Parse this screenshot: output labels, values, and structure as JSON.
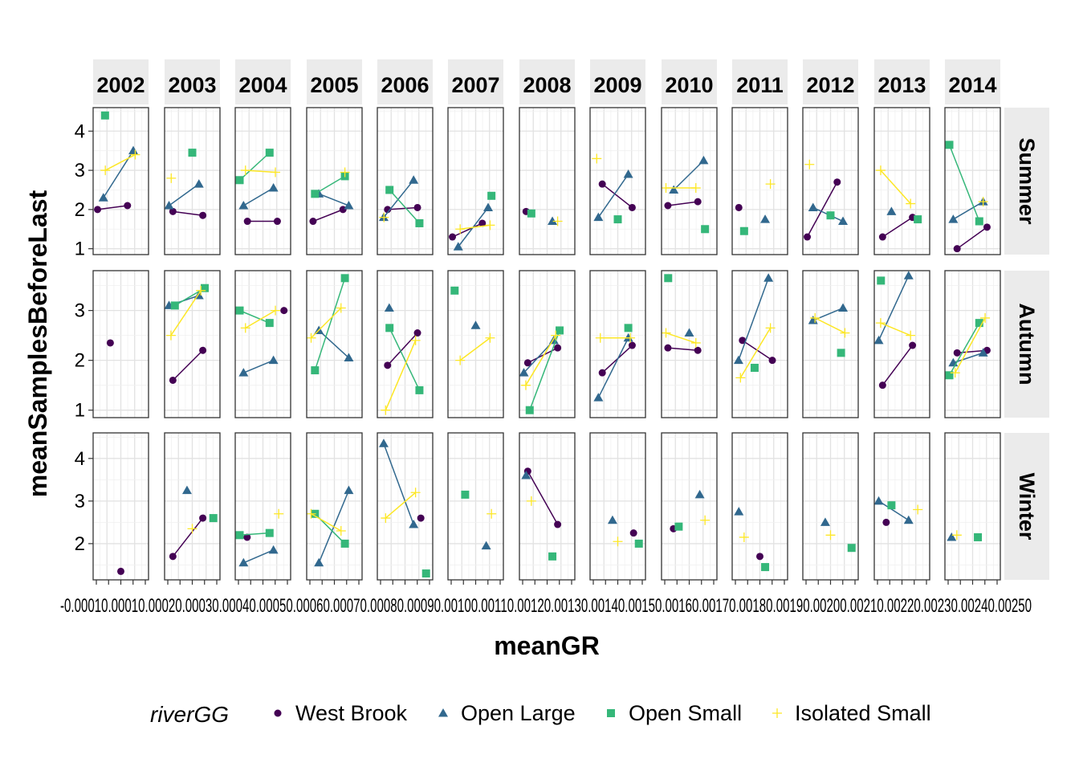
{
  "chart_data": {
    "type": "line",
    "xlabel": "meanGR",
    "ylabel": "meanSamplesBeforeLast",
    "x_tick_labels_text": "-0.00010.00010.00020.00030.00040.00050.00060.00070.00080.00090.00100.00110.00120.00130.00140.00150.00160.00170.00180.00190.00200.00210.00220.00230.00240.00250",
    "facets": {
      "columns": [
        "2002",
        "2003",
        "2004",
        "2005",
        "2006",
        "2007",
        "2008",
        "2009",
        "2010",
        "2011",
        "2012",
        "2013",
        "2014"
      ],
      "rows": [
        "Summer",
        "Autumn",
        "Winter"
      ]
    },
    "y_axes": {
      "Summer": {
        "ylim": [
          0.85,
          4.6
        ],
        "ticks": [
          1,
          2,
          3,
          4
        ],
        "tick_labels": [
          "1",
          "2",
          "3",
          "4"
        ]
      },
      "Autumn": {
        "ylim": [
          0.85,
          3.8
        ],
        "ticks": [
          1,
          2,
          3
        ],
        "tick_labels": [
          "1",
          "2",
          "3"
        ]
      },
      "Winter": {
        "ylim": [
          1.15,
          4.6
        ],
        "ticks": [
          2,
          3,
          4
        ],
        "tick_labels": [
          "2",
          "3",
          "4"
        ]
      }
    },
    "legend": {
      "title": "riverGG",
      "position": "bottom",
      "entries": [
        {
          "label": "West Brook",
          "color": "#440154",
          "shape": "circle"
        },
        {
          "label": "Open Large",
          "color": "#31688E",
          "shape": "triangle"
        },
        {
          "label": "Open Small",
          "color": "#35B779",
          "shape": "square"
        },
        {
          "label": "Isolated Small",
          "color": "#FDE725",
          "shape": "plus"
        }
      ]
    },
    "series_values": {
      "Summer": {
        "2002": {
          "West Brook": [
            2.0,
            2.1
          ],
          "Open Large": [
            2.3,
            3.5
          ],
          "Open Small": [
            4.4
          ],
          "Isolated Small": [
            3.0,
            3.4
          ]
        },
        "2003": {
          "West Brook": [
            1.95,
            1.85
          ],
          "Open Large": [
            2.1,
            2.65
          ],
          "Open Small": [
            3.45
          ],
          "Isolated Small": [
            2.8
          ]
        },
        "2004": {
          "West Brook": [
            1.7,
            1.7
          ],
          "Open Large": [
            2.1,
            2.55
          ],
          "Open Small": [
            2.75,
            3.45
          ],
          "Isolated Small": [
            3.0,
            2.95
          ]
        },
        "2005": {
          "West Brook": [
            1.7,
            2.0
          ],
          "Open Large": [
            2.4,
            2.1
          ],
          "Open Small": [
            2.4,
            2.85
          ],
          "Isolated Small": [
            2.95
          ]
        },
        "2006": {
          "West Brook": [
            2.0,
            2.05
          ],
          "Open Large": [
            1.8,
            2.75
          ],
          "Open Small": [
            2.5,
            1.65
          ],
          "Isolated Small": [
            1.8
          ]
        },
        "2007": {
          "West Brook": [
            1.3,
            1.65
          ],
          "Open Large": [
            1.05,
            2.05
          ],
          "Open Small": [
            2.35
          ],
          "Isolated Small": [
            1.5,
            1.6
          ]
        },
        "2008": {
          "West Brook": [
            1.95
          ],
          "Open Large": [
            1.7
          ],
          "Open Small": [
            1.9
          ],
          "Isolated Small": [
            1.7
          ]
        },
        "2009": {
          "West Brook": [
            2.65,
            2.05
          ],
          "Open Large": [
            1.8,
            2.9
          ],
          "Open Small": [
            1.75
          ],
          "Isolated Small": [
            3.3
          ]
        },
        "2010": {
          "West Brook": [
            2.1,
            2.2
          ],
          "Open Large": [
            2.5,
            3.25
          ],
          "Open Small": [
            1.5
          ],
          "Isolated Small": [
            2.55,
            2.55
          ]
        },
        "2011": {
          "West Brook": [
            2.05
          ],
          "Open Large": [
            1.75
          ],
          "Open Small": [
            1.45
          ],
          "Isolated Small": [
            2.65
          ]
        },
        "2012": {
          "West Brook": [
            1.3,
            2.7
          ],
          "Open Large": [
            2.05,
            1.7
          ],
          "Open Small": [
            1.85
          ],
          "Isolated Small": [
            3.15
          ]
        },
        "2013": {
          "West Brook": [
            1.3,
            1.8
          ],
          "Open Large": [
            1.95
          ],
          "Open Small": [
            1.75
          ],
          "Isolated Small": [
            3.0,
            2.15
          ]
        },
        "2014": {
          "West Brook": [
            1.0,
            1.55
          ],
          "Open Large": [
            1.75,
            2.2
          ],
          "Open Small": [
            3.65,
            1.7
          ],
          "Isolated Small": [
            2.2
          ]
        }
      },
      "Autumn": {
        "2002": {
          "West Brook": [
            2.35
          ]
        },
        "2003": {
          "West Brook": [
            1.6,
            2.2
          ],
          "Open Large": [
            3.1,
            3.3
          ],
          "Open Small": [
            3.1,
            3.45
          ],
          "Isolated Small": [
            2.5,
            3.4
          ]
        },
        "2004": {
          "West Brook": [
            3.0
          ],
          "Open Large": [
            1.75,
            2.0
          ],
          "Open Small": [
            3.0,
            2.75
          ],
          "Isolated Small": [
            2.65,
            3.0
          ]
        },
        "2005": {
          "Open Large": [
            2.6,
            2.05
          ],
          "Open Small": [
            1.8,
            3.65
          ],
          "Isolated Small": [
            2.45,
            3.05
          ]
        },
        "2006": {
          "West Brook": [
            1.9,
            2.55
          ],
          "Open Large": [
            3.05
          ],
          "Open Small": [
            2.65,
            1.4
          ],
          "Isolated Small": [
            1.0,
            2.4
          ]
        },
        "2007": {
          "Open Large": [
            2.7
          ],
          "Open Small": [
            3.4
          ],
          "Isolated Small": [
            2.0,
            2.45
          ]
        },
        "2008": {
          "West Brook": [
            1.95,
            2.25
          ],
          "Open Large": [
            1.75,
            2.4
          ],
          "Open Small": [
            1.0,
            2.6
          ],
          "Isolated Small": [
            1.5,
            2.5
          ]
        },
        "2009": {
          "West Brook": [
            1.75,
            2.3
          ],
          "Open Large": [
            1.25,
            2.45
          ],
          "Open Small": [
            2.65
          ],
          "Isolated Small": [
            2.45,
            2.45
          ]
        },
        "2010": {
          "West Brook": [
            2.25,
            2.2
          ],
          "Open Large": [
            2.55
          ],
          "Open Small": [
            3.65
          ],
          "Isolated Small": [
            2.55,
            2.35
          ]
        },
        "2011": {
          "West Brook": [
            2.4,
            2.0
          ],
          "Open Large": [
            2.0,
            3.65
          ],
          "Open Small": [
            1.85
          ],
          "Isolated Small": [
            1.65,
            2.65
          ]
        },
        "2012": {
          "Open Large": [
            2.8,
            3.05
          ],
          "Open Small": [
            2.15
          ],
          "Isolated Small": [
            2.85,
            2.55
          ]
        },
        "2013": {
          "West Brook": [
            1.5,
            2.3
          ],
          "Open Large": [
            2.4,
            3.7
          ],
          "Open Small": [
            3.6
          ],
          "Isolated Small": [
            2.75,
            2.5
          ]
        },
        "2014": {
          "West Brook": [
            2.15,
            2.2
          ],
          "Open Large": [
            1.95,
            2.15
          ],
          "Open Small": [
            1.7,
            2.75
          ],
          "Isolated Small": [
            1.75,
            2.85
          ]
        }
      },
      "Winter": {
        "2002": {
          "West Brook": [
            1.35
          ]
        },
        "2003": {
          "West Brook": [
            1.7,
            2.6
          ],
          "Open Large": [
            3.25
          ],
          "Open Small": [
            2.6
          ],
          "Isolated Small": [
            2.35
          ]
        },
        "2004": {
          "West Brook": [
            2.15
          ],
          "Open Large": [
            1.55,
            1.85
          ],
          "Open Small": [
            2.2,
            2.25
          ],
          "Isolated Small": [
            2.7
          ]
        },
        "2005": {
          "Open Large": [
            1.55,
            3.25
          ],
          "Open Small": [
            2.7,
            2.0
          ],
          "Isolated Small": [
            2.7,
            2.3
          ]
        },
        "2006": {
          "West Brook": [
            2.6
          ],
          "Open Large": [
            4.35,
            2.45
          ],
          "Open Small": [
            1.3
          ],
          "Isolated Small": [
            2.6,
            3.2
          ]
        },
        "2007": {
          "Open Large": [
            1.95
          ],
          "Open Small": [
            3.15
          ],
          "Isolated Small": [
            2.7
          ]
        },
        "2008": {
          "West Brook": [
            3.7,
            2.45
          ],
          "Open Large": [
            3.6
          ],
          "Open Small": [
            1.7
          ],
          "Isolated Small": [
            3.0
          ]
        },
        "2009": {
          "West Brook": [
            2.25
          ],
          "Open Large": [
            2.55
          ],
          "Open Small": [
            2.0
          ],
          "Isolated Small": [
            2.05
          ]
        },
        "2010": {
          "West Brook": [
            2.35
          ],
          "Open Large": [
            3.15
          ],
          "Open Small": [
            2.4
          ],
          "Isolated Small": [
            2.55
          ]
        },
        "2011": {
          "West Brook": [
            1.7
          ],
          "Open Large": [
            2.75
          ],
          "Open Small": [
            1.45
          ],
          "Isolated Small": [
            2.15
          ]
        },
        "2012": {
          "Open Large": [
            2.5
          ],
          "Open Small": [
            1.9
          ],
          "Isolated Small": [
            2.2
          ]
        },
        "2013": {
          "West Brook": [
            2.5
          ],
          "Open Large": [
            3.0,
            2.55
          ],
          "Open Small": [
            2.9
          ],
          "Isolated Small": [
            2.8
          ]
        },
        "2014": {
          "Open Large": [
            2.15
          ],
          "Open Small": [
            2.15
          ],
          "Isolated Small": [
            2.2
          ]
        }
      }
    }
  }
}
